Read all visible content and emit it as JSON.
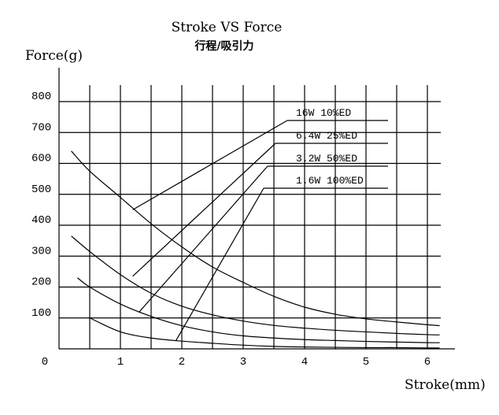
{
  "chart_data": {
    "type": "line",
    "title": "Stroke VS  Force",
    "subtitle": "行程/吸引力",
    "ylabel": "Force(g)",
    "xlabel": "Stroke(mm)",
    "xlim": [
      0,
      6.5
    ],
    "ylim": [
      0,
      800
    ],
    "x_ticks": [
      "0",
      "1",
      "2",
      "3",
      "4",
      "5",
      "6"
    ],
    "y_ticks": [
      "100",
      "200",
      "300",
      "400",
      "500",
      "600",
      "700",
      "800"
    ],
    "grid": true,
    "series": [
      {
        "name": "16W  10%ED",
        "x": [
          0.2,
          0.5,
          1.0,
          1.5,
          2.0,
          2.5,
          3.0,
          3.5,
          4.0,
          4.5,
          5.0,
          5.5,
          6.0,
          6.2
        ],
        "y": [
          640,
          575,
          490,
          405,
          330,
          265,
          215,
          170,
          135,
          112,
          97,
          87,
          78,
          75
        ],
        "label_anchor": [
          1.2,
          450
        ]
      },
      {
        "name": "6.4W  25%ED",
        "x": [
          0.2,
          0.5,
          1.0,
          1.5,
          2.0,
          2.5,
          3.0,
          3.5,
          4.0,
          4.5,
          5.0,
          5.5,
          6.0,
          6.2
        ],
        "y": [
          365,
          315,
          240,
          180,
          138,
          110,
          90,
          76,
          67,
          60,
          55,
          50,
          46,
          45
        ],
        "label_anchor": [
          1.2,
          235
        ]
      },
      {
        "name": "3.2W  50%ED",
        "x": [
          0.3,
          0.5,
          1.0,
          1.5,
          2.0,
          2.5,
          3.0,
          3.5,
          4.0,
          4.5,
          5.0,
          5.5,
          6.0,
          6.2
        ],
        "y": [
          230,
          200,
          145,
          105,
          75,
          55,
          42,
          35,
          30,
          27,
          24,
          22,
          20,
          20
        ],
        "label_anchor": [
          1.3,
          118
        ]
      },
      {
        "name": "1.6W  100%ED",
        "x": [
          0.5,
          1.0,
          1.5,
          2.0,
          2.5,
          3.0,
          3.5,
          4.0,
          4.5,
          5.0,
          5.5,
          6.0,
          6.2
        ],
        "y": [
          100,
          55,
          35,
          25,
          18,
          12,
          8,
          6,
          5,
          4,
          4,
          3,
          3
        ],
        "label_anchor": [
          1.9,
          25
        ]
      }
    ]
  }
}
